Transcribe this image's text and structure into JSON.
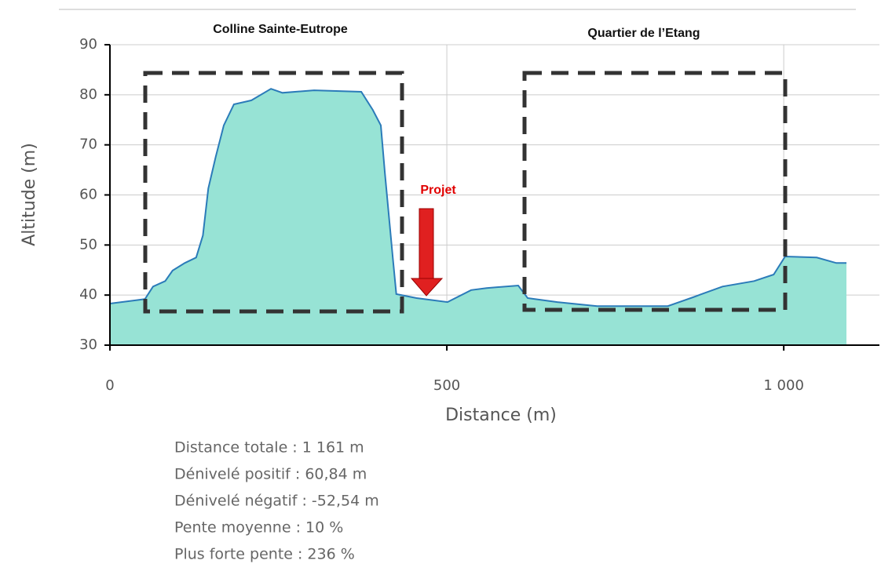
{
  "chart_data": {
    "type": "area",
    "annotations": [
      "Colline Sainte-Eutrope",
      "Quartier de l’Etang",
      "Projet"
    ],
    "xlabel": "Distance (m)",
    "ylabel": "Altitude (m)",
    "x": [
      0,
      52,
      64,
      82,
      93,
      111,
      128,
      138,
      146,
      157,
      169,
      184,
      210,
      239,
      256,
      303,
      373,
      390,
      402,
      408,
      420,
      425,
      455,
      501,
      536,
      559,
      606,
      620,
      664,
      723,
      828,
      862,
      909,
      956,
      985,
      1002,
      1049,
      1078,
      1093
    ],
    "values": [
      38.3,
      39.2,
      41.7,
      42.8,
      44.9,
      46.4,
      47.5,
      51.9,
      61.3,
      67.6,
      73.9,
      78.1,
      78.9,
      81.2,
      80.4,
      80.9,
      80.6,
      77.0,
      73.9,
      64.5,
      47.2,
      40.2,
      39.4,
      38.6,
      41.0,
      41.4,
      41.9,
      39.4,
      38.6,
      37.8,
      37.8,
      39.4,
      41.7,
      42.8,
      44.1,
      47.7,
      47.5,
      46.4,
      46.4
    ],
    "fill_color": "#97e3d5",
    "line_color": "#2b7bb9",
    "xlim": [
      0,
      1142
    ],
    "xticks": [
      0,
      500,
      {
        "value": 1000,
        "label": "1 000"
      }
    ],
    "ylim": [
      30,
      90
    ],
    "yticks": [
      30,
      40,
      50,
      60,
      70,
      80,
      90
    ],
    "grid": true,
    "stats": [
      "Distance totale : 1 161 m",
      "Dénivelé positif : 60,84 m",
      "Dénivelé négatif : -52,54 m",
      "Pente moyenne : 10 %",
      "Plus forte pente : 236 %"
    ]
  }
}
